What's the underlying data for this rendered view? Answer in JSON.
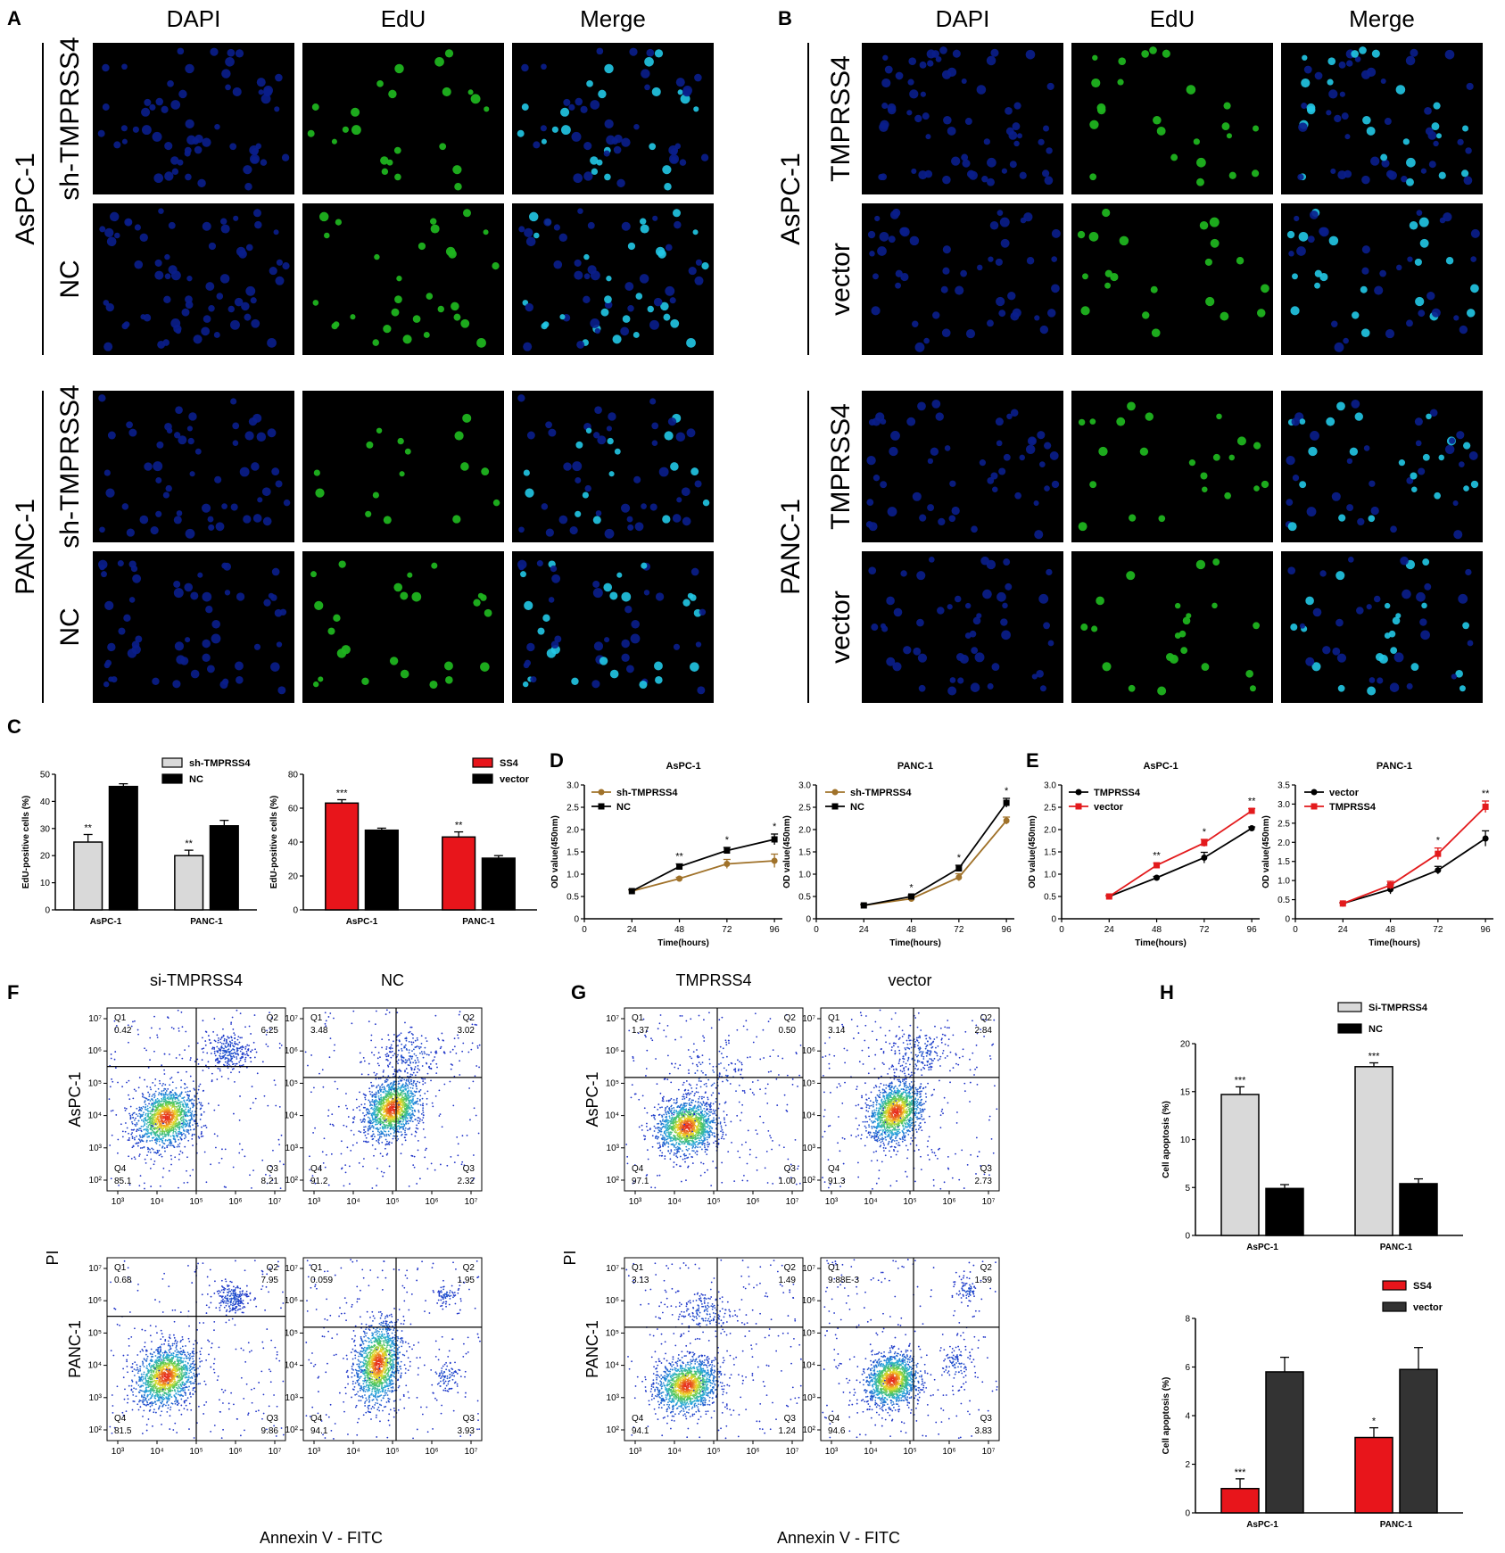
{
  "panels": {
    "A": "A",
    "B": "B",
    "C": "C",
    "D": "D",
    "E": "E",
    "F": "F",
    "G": "G",
    "H": "H"
  },
  "colors": {
    "dapi": "#0a1e8c",
    "edu": "#1fb31f",
    "merge": "#22c8e6",
    "black": "#000000",
    "gray": "#d9d9d9",
    "red": "#e8151b",
    "brown": "#a0722a",
    "red_line": "#e31a1c",
    "dark": "#333333"
  },
  "panelA": {
    "headers": [
      "DAPI",
      "EdU",
      "Merge"
    ],
    "lines": [
      {
        "label": "AsPC-1",
        "rows": [
          "sh-TMPRSS4",
          "NC"
        ]
      },
      {
        "label": "PANC-1",
        "rows": [
          "sh-TMPRSS4",
          "NC"
        ]
      }
    ]
  },
  "panelB": {
    "headers": [
      "DAPI",
      "EdU",
      "Merge"
    ],
    "lines": [
      {
        "label": "AsPC-1",
        "rows": [
          "TMPRSS4",
          "vector"
        ]
      },
      {
        "label": "PANC-1",
        "rows": [
          "TMPRSS4",
          "vector"
        ]
      }
    ]
  },
  "chart_data": [
    {
      "id": "C1",
      "type": "bar",
      "categories": [
        "AsPC-1",
        "PANC-1"
      ],
      "ylabel": "EdU-positive cells (%)",
      "ylim": [
        0,
        50
      ],
      "yticks": [
        0,
        10,
        20,
        30,
        40,
        50
      ],
      "series": [
        {
          "name": "sh-TMPRSS4",
          "values": [
            25,
            20
          ],
          "errors": [
            2.8,
            2
          ],
          "color": "#d9d9d9"
        },
        {
          "name": "NC",
          "values": [
            45.5,
            31
          ],
          "errors": [
            1,
            2
          ],
          "color": "#000000"
        }
      ],
      "annotations": [
        {
          "text": "**",
          "category": 0,
          "series": 0
        },
        {
          "text": "**",
          "category": 1,
          "series": 0
        }
      ]
    },
    {
      "id": "C2",
      "type": "bar",
      "categories": [
        "AsPC-1",
        "PANC-1"
      ],
      "ylabel": "EdU-positive cells (%)",
      "ylim": [
        0,
        80
      ],
      "yticks": [
        0,
        20,
        40,
        60,
        80
      ],
      "series": [
        {
          "name": "SS4",
          "values": [
            63,
            43
          ],
          "errors": [
            2,
            3
          ],
          "color": "#e8151b"
        },
        {
          "name": "vector",
          "values": [
            47,
            30.5
          ],
          "errors": [
            1.2,
            1.5
          ],
          "color": "#000000"
        }
      ],
      "annotations": [
        {
          "text": "***",
          "category": 0,
          "series": 0
        },
        {
          "text": "**",
          "category": 1,
          "series": 0
        }
      ]
    },
    {
      "id": "D1",
      "type": "line",
      "title": "AsPC-1",
      "xlabel": "Time(hours)",
      "ylabel": "OD value(450nm)",
      "x": [
        24,
        48,
        72,
        96
      ],
      "xticks": [
        0,
        24,
        48,
        72,
        96
      ],
      "ylim": [
        0,
        3.0
      ],
      "yticks": [
        0,
        0.5,
        1.0,
        1.5,
        2.0,
        2.5,
        3.0
      ],
      "xlim": [
        0,
        100
      ],
      "series": [
        {
          "name": "sh-TMPRSS4",
          "values": [
            0.62,
            0.9,
            1.23,
            1.3
          ],
          "errors": [
            0.03,
            0.03,
            0.1,
            0.15
          ],
          "color": "#a0722a",
          "marker": "circle"
        },
        {
          "name": "NC",
          "values": [
            0.62,
            1.17,
            1.53,
            1.78
          ],
          "errors": [
            0.03,
            0.06,
            0.07,
            0.12
          ],
          "color": "#000000",
          "marker": "square"
        }
      ],
      "stars": [
        "",
        "**",
        "*",
        "*"
      ]
    },
    {
      "id": "D2",
      "type": "line",
      "title": "PANC-1",
      "xlabel": "Time(hours)",
      "ylabel": "OD value(450nm)",
      "x": [
        24,
        48,
        72,
        96
      ],
      "xticks": [
        0,
        24,
        48,
        72,
        96
      ],
      "ylim": [
        0,
        3.0
      ],
      "yticks": [
        0,
        0.5,
        1.0,
        1.5,
        2.0,
        2.5,
        3.0
      ],
      "xlim": [
        0,
        100
      ],
      "series": [
        {
          "name": "sh-TMPRSS4",
          "values": [
            0.3,
            0.45,
            0.93,
            2.2
          ],
          "errors": [
            0.02,
            0.03,
            0.08,
            0.08
          ],
          "color": "#a0722a",
          "marker": "circle"
        },
        {
          "name": "NC",
          "values": [
            0.3,
            0.5,
            1.13,
            2.6
          ],
          "errors": [
            0.02,
            0.03,
            0.07,
            0.1
          ],
          "color": "#000000",
          "marker": "square"
        }
      ],
      "stars": [
        "",
        "*",
        "*",
        "*"
      ]
    },
    {
      "id": "E1",
      "type": "line",
      "title": "AsPC-1",
      "xlabel": "Time(hours)",
      "ylabel": "OD value(450nm)",
      "x": [
        24,
        48,
        72,
        96
      ],
      "xticks": [
        0,
        24,
        48,
        72,
        96
      ],
      "ylim": [
        0,
        3.0
      ],
      "yticks": [
        0,
        0.5,
        1.0,
        1.5,
        2.0,
        2.5,
        3.0
      ],
      "xlim": [
        0,
        100
      ],
      "series": [
        {
          "name": "TMPRSS4",
          "values": [
            0.5,
            0.92,
            1.37,
            2.03
          ],
          "errors": [
            0.02,
            0.03,
            0.12,
            0.03
          ],
          "color": "#000000",
          "marker": "circle"
        },
        {
          "name": "vector",
          "values": [
            0.5,
            1.2,
            1.7,
            2.42
          ],
          "errors": [
            0.02,
            0.05,
            0.08,
            0.05
          ],
          "color": "#e31a1c",
          "marker": "square"
        }
      ],
      "stars": [
        "",
        "**",
        "*",
        "**"
      ]
    },
    {
      "id": "E2",
      "type": "line",
      "title": "PANC-1",
      "xlabel": "Time(hours)",
      "ylabel": "OD value(450nm)",
      "x": [
        24,
        48,
        72,
        96
      ],
      "xticks": [
        0,
        24,
        48,
        72,
        96
      ],
      "ylim": [
        0,
        3.5
      ],
      "yticks": [
        0,
        0.5,
        1.0,
        1.5,
        2.0,
        2.5,
        3.0,
        3.5
      ],
      "xlim": [
        0,
        100
      ],
      "series": [
        {
          "name": "vector",
          "values": [
            0.4,
            0.77,
            1.27,
            2.1
          ],
          "errors": [
            0.02,
            0.12,
            0.1,
            0.2
          ],
          "color": "#000000",
          "marker": "circle"
        },
        {
          "name": "TMPRSS4",
          "values": [
            0.4,
            0.88,
            1.7,
            2.93
          ],
          "errors": [
            0.02,
            0.1,
            0.15,
            0.15
          ],
          "color": "#e31a1c",
          "marker": "square"
        }
      ],
      "stars": [
        "",
        "",
        "*",
        "**"
      ]
    },
    {
      "id": "H1",
      "type": "bar",
      "categories": [
        "AsPC-1",
        "PANC-1"
      ],
      "ylabel": "Cell apoptosis (%)",
      "ylim": [
        0,
        20
      ],
      "yticks": [
        0,
        5,
        10,
        15,
        20
      ],
      "series": [
        {
          "name": "Si-TMPRSS4",
          "values": [
            14.7,
            17.6
          ],
          "errors": [
            0.8,
            0.4
          ],
          "color": "#d9d9d9"
        },
        {
          "name": "NC",
          "values": [
            4.9,
            5.4
          ],
          "errors": [
            0.4,
            0.5
          ],
          "color": "#000000"
        }
      ],
      "annotations": [
        {
          "text": "***",
          "category": 0,
          "series": 0
        },
        {
          "text": "***",
          "category": 1,
          "series": 0
        }
      ]
    },
    {
      "id": "H2",
      "type": "bar",
      "categories": [
        "AsPC-1",
        "PANC-1"
      ],
      "ylabel": "Cell apoptosis (%)",
      "ylim": [
        0,
        8
      ],
      "yticks": [
        0,
        2,
        4,
        6,
        8
      ],
      "series": [
        {
          "name": "SS4",
          "values": [
            1.0,
            3.1
          ],
          "errors": [
            0.4,
            0.4
          ],
          "color": "#e8151b"
        },
        {
          "name": "vector",
          "values": [
            5.8,
            5.9
          ],
          "errors": [
            0.6,
            0.9
          ],
          "color": "#333333"
        }
      ],
      "annotations": [
        {
          "text": "***",
          "category": 0,
          "series": 0
        },
        {
          "text": "*",
          "category": 1,
          "series": 0
        }
      ]
    }
  ],
  "panelF": {
    "headers": [
      "si-TMPRSS4",
      "NC"
    ],
    "rows": [
      "AsPC-1",
      "PANC-1"
    ],
    "ylabel": "PI",
    "xlabel": "Annexin V - FITC",
    "plots": [
      {
        "q1": "0.42",
        "q2": "6.25",
        "q3": "8.21",
        "q4": "85.1"
      },
      {
        "q1": "3.48",
        "q2": "3.02",
        "q3": "2.32",
        "q4": "91.2"
      },
      {
        "q1": "0.68",
        "q2": "7.95",
        "q3": "9.86",
        "q4": "81.5"
      },
      {
        "q1": "0.059",
        "q2": "1.95",
        "q3": "3.93",
        "q4": "94.1"
      }
    ]
  },
  "panelG": {
    "headers": [
      "TMPRSS4",
      "vector"
    ],
    "rows": [
      "AsPC-1",
      "PANC-1"
    ],
    "ylabel": "PI",
    "xlabel": "Annexin V - FITC",
    "plots": [
      {
        "q1": "1.37",
        "q2": "0.50",
        "q3": "1.00",
        "q4": "97.1"
      },
      {
        "q1": "3.14",
        "q2": "2.84",
        "q3": "2.73",
        "q4": "91.3"
      },
      {
        "q1": "3.13",
        "q2": "1.49",
        "q3": "1.24",
        "q4": "94.1"
      },
      {
        "q1": "9.88E-3",
        "q2": "1.59",
        "q3": "3.83",
        "q4": "94.6"
      }
    ]
  },
  "flow_labels": {
    "q1": "Q1",
    "q2": "Q2",
    "q3": "Q3",
    "q4": "Q4"
  },
  "flow_ticks": {
    "x": [
      "10³",
      "10⁴",
      "10⁵",
      "10⁶",
      "10⁷"
    ],
    "y": [
      "10²",
      "10³",
      "10⁴",
      "10⁵",
      "10⁶",
      "10⁷"
    ]
  }
}
